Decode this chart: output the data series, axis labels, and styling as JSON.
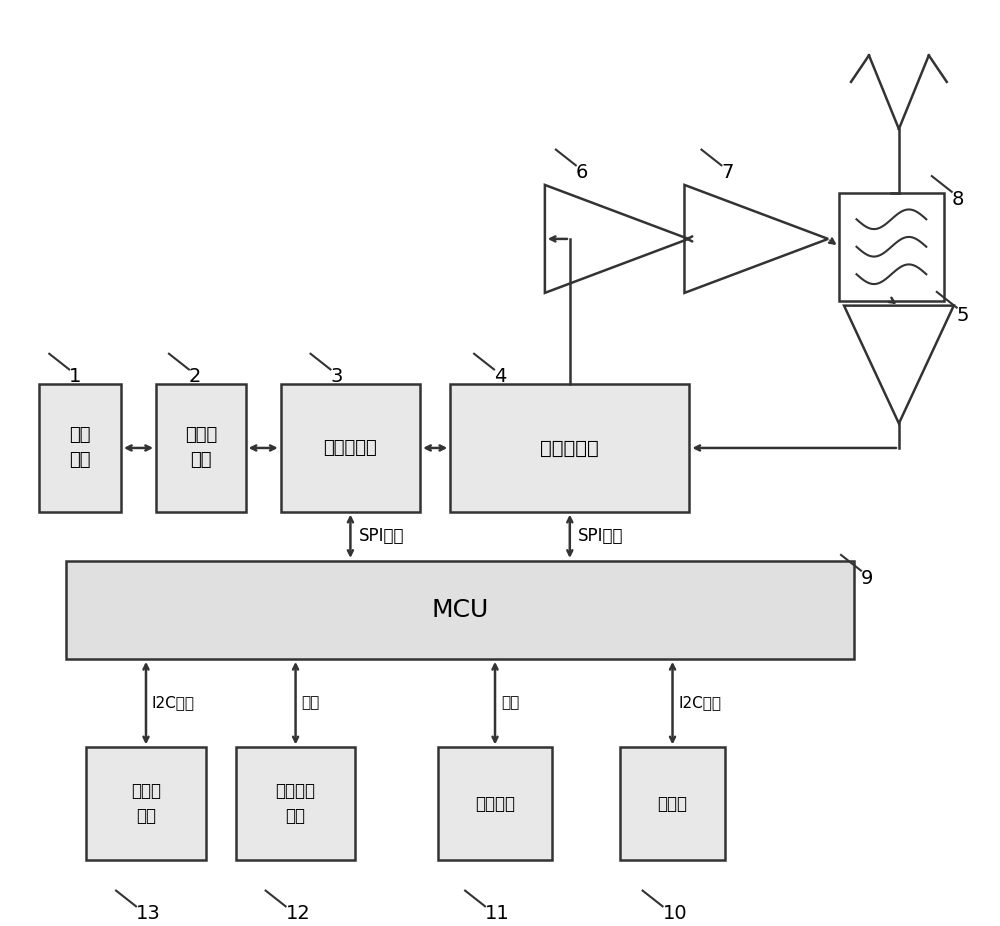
{
  "bg_color": "#ffffff",
  "box_fill": "#e8e8e8",
  "box_edge": "#333333",
  "line_color": "#333333",
  "figsize": [
    10.0,
    9.26
  ],
  "dpi": 100,
  "components": {
    "transceiver": {
      "label": "送受\n话器",
      "num": "1"
    },
    "audio_amp": {
      "label": "音频放\n大器",
      "num": "2"
    },
    "audio_proc": {
      "label": "音频处理器",
      "num": "3"
    },
    "modem": {
      "label": "调制解调器",
      "num": "4"
    },
    "mcu": {
      "label": "MCU",
      "num": "9"
    },
    "inertial": {
      "label": "微惯导\n模块",
      "num": "13"
    },
    "beidou": {
      "label": "北斗定位\n模块",
      "num": "12"
    },
    "bluetooth": {
      "label": "蓝牙模块",
      "num": "11"
    },
    "barometer": {
      "label": "气压计",
      "num": "10"
    }
  },
  "spi_labels": [
    "SPI总线",
    "SPI总线"
  ],
  "bus_labels": [
    "I2C总线",
    "串口",
    "串口",
    "I2C总线"
  ]
}
